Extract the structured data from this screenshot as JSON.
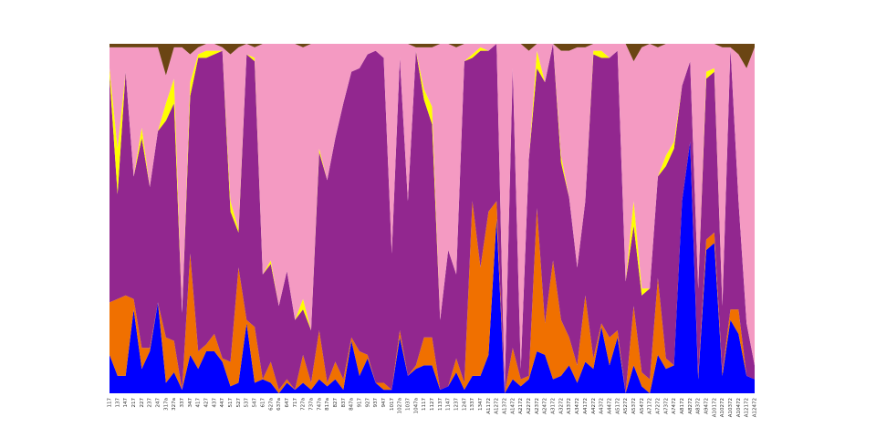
{
  "chart_data": {
    "type": "stacked_area",
    "categories": [
      "117",
      "137",
      "147",
      "217",
      "227",
      "237",
      "247",
      "317a",
      "327a",
      "337",
      "347",
      "417",
      "427",
      "437",
      "447",
      "517",
      "527",
      "537",
      "547",
      "617",
      "627a",
      "637a",
      "647",
      "717",
      "727a",
      "737a",
      "747a",
      "817a",
      "827",
      "837",
      "847a",
      "917",
      "927",
      "937",
      "947",
      "1017",
      "1027a",
      "1037",
      "1047a",
      "1117",
      "1127",
      "1137",
      "1147",
      "1237",
      "1247",
      "1337",
      "1347",
      "A1172",
      "A1272",
      "A1372",
      "A1472",
      "A2172",
      "A2272",
      "A2372",
      "A2472",
      "A3172",
      "A3272",
      "A3372",
      "A3472",
      "A4172",
      "A4272",
      "A4372",
      "A4472",
      "A5172",
      "A5272",
      "A5372",
      "A5472",
      "A7172",
      "A7272",
      "A7372",
      "A7472",
      "A8172",
      "A8272",
      "A8372",
      "A9472",
      "A10172",
      "A10272",
      "A10372",
      "A10472",
      "A12172",
      "A12472"
    ],
    "ylim": [
      0,
      100
    ],
    "series": [
      {
        "color": "#0000ff",
        "values": [
          11,
          5,
          5,
          24,
          7,
          12,
          26,
          3,
          6,
          1,
          11,
          7,
          12,
          12,
          9,
          2,
          3,
          20,
          3,
          4,
          3,
          0,
          3,
          1,
          3,
          1,
          4,
          2,
          4,
          1,
          15,
          5,
          10,
          3,
          1,
          1,
          16,
          5,
          7,
          8,
          8,
          1,
          2,
          6,
          1,
          5,
          5,
          11,
          50,
          0,
          4,
          2,
          4,
          12,
          11,
          4,
          5,
          8,
          3,
          9,
          7,
          19,
          8,
          16,
          0,
          8,
          2,
          0,
          11,
          7,
          8,
          55,
          72,
          4,
          41,
          43,
          5,
          21,
          17,
          5,
          4
        ]
      },
      {
        "color": "#f07000",
        "values": [
          15,
          22,
          23,
          3,
          6,
          1,
          0,
          13,
          9,
          0,
          29,
          5,
          2,
          5,
          1,
          7,
          33,
          1,
          16,
          0,
          6,
          1,
          1,
          0,
          8,
          2,
          14,
          1,
          5,
          3,
          1,
          7,
          1,
          0,
          2,
          0,
          2,
          0,
          1,
          8,
          8,
          0,
          0,
          4,
          2,
          50,
          31,
          41,
          5,
          0,
          9,
          2,
          1,
          41,
          9,
          34,
          16,
          8,
          5,
          19,
          3,
          1,
          8,
          2,
          0,
          17,
          4,
          4,
          22,
          3,
          0,
          0,
          0,
          1,
          3,
          3,
          1,
          3,
          7,
          0,
          0
        ]
      },
      {
        "color": "#92278f",
        "values": [
          65,
          30,
          64,
          35,
          60,
          46,
          49,
          62,
          68,
          22,
          45,
          84,
          82,
          80,
          88,
          43,
          10,
          76,
          76,
          30,
          28,
          24,
          31,
          20,
          13,
          15,
          51,
          58,
          64,
          79,
          76,
          81,
          86,
          95,
          93,
          39,
          78,
          50,
          90,
          68,
          61,
          20,
          39,
          24,
          92,
          41,
          62,
          46,
          45,
          1,
          80,
          3,
          62,
          40,
          69,
          62,
          45,
          40,
          28,
          27,
          87,
          76,
          80,
          80,
          32,
          23,
          22,
          26,
          29,
          55,
          62,
          33,
          23,
          25,
          46,
          46,
          19,
          75,
          31,
          15,
          4
        ]
      },
      {
        "color": "#ffff00",
        "values": [
          2,
          13,
          0,
          0,
          3,
          0,
          0,
          5,
          7,
          0,
          4,
          1,
          2,
          1,
          0,
          3,
          1,
          0,
          1,
          0,
          1,
          0,
          0,
          0,
          3,
          0,
          1,
          0,
          0,
          0,
          0,
          0,
          0,
          0,
          0,
          0,
          0,
          0,
          0,
          3,
          5,
          0,
          0,
          0,
          0,
          1,
          1,
          0,
          0,
          0,
          0,
          0,
          0,
          5,
          0,
          0,
          2,
          0,
          0,
          0,
          1,
          2,
          0,
          0,
          0,
          7,
          2,
          0,
          0,
          3,
          2,
          0,
          0,
          0,
          2,
          1,
          0,
          0,
          0,
          0,
          0
        ]
      },
      {
        "color": "#f49ac2",
        "values": [
          6,
          29,
          7,
          37,
          23,
          40,
          24,
          8,
          9,
          76,
          8,
          2,
          2,
          2,
          1,
          42,
          52,
          3,
          3,
          66,
          62,
          75,
          65,
          79,
          72,
          82,
          30,
          39,
          27,
          17,
          8,
          7,
          3,
          2,
          4,
          60,
          4,
          45,
          1,
          12,
          17,
          79,
          59,
          65,
          5,
          3,
          1,
          2,
          0,
          99,
          7,
          93,
          31,
          2,
          11,
          0,
          30,
          42,
          63,
          44,
          2,
          2,
          4,
          2,
          68,
          40,
          69,
          70,
          37,
          32,
          28,
          12,
          5,
          70,
          8,
          7,
          74,
          0,
          42,
          73,
          91
        ]
      },
      {
        "color": "#6b4513",
        "values": [
          1,
          1,
          1,
          1,
          1,
          1,
          1,
          9,
          1,
          1,
          3,
          1,
          0,
          0,
          1,
          3,
          1,
          0,
          1,
          0,
          0,
          0,
          0,
          0,
          1,
          0,
          0,
          0,
          0,
          0,
          0,
          0,
          0,
          0,
          0,
          0,
          0,
          0,
          1,
          1,
          1,
          0,
          0,
          1,
          0,
          0,
          0,
          0,
          0,
          0,
          0,
          0,
          2,
          0,
          0,
          0,
          2,
          2,
          1,
          1,
          0,
          0,
          0,
          0,
          0,
          5,
          1,
          0,
          1,
          0,
          0,
          0,
          0,
          0,
          0,
          0,
          1,
          1,
          3,
          7,
          1
        ]
      }
    ]
  }
}
